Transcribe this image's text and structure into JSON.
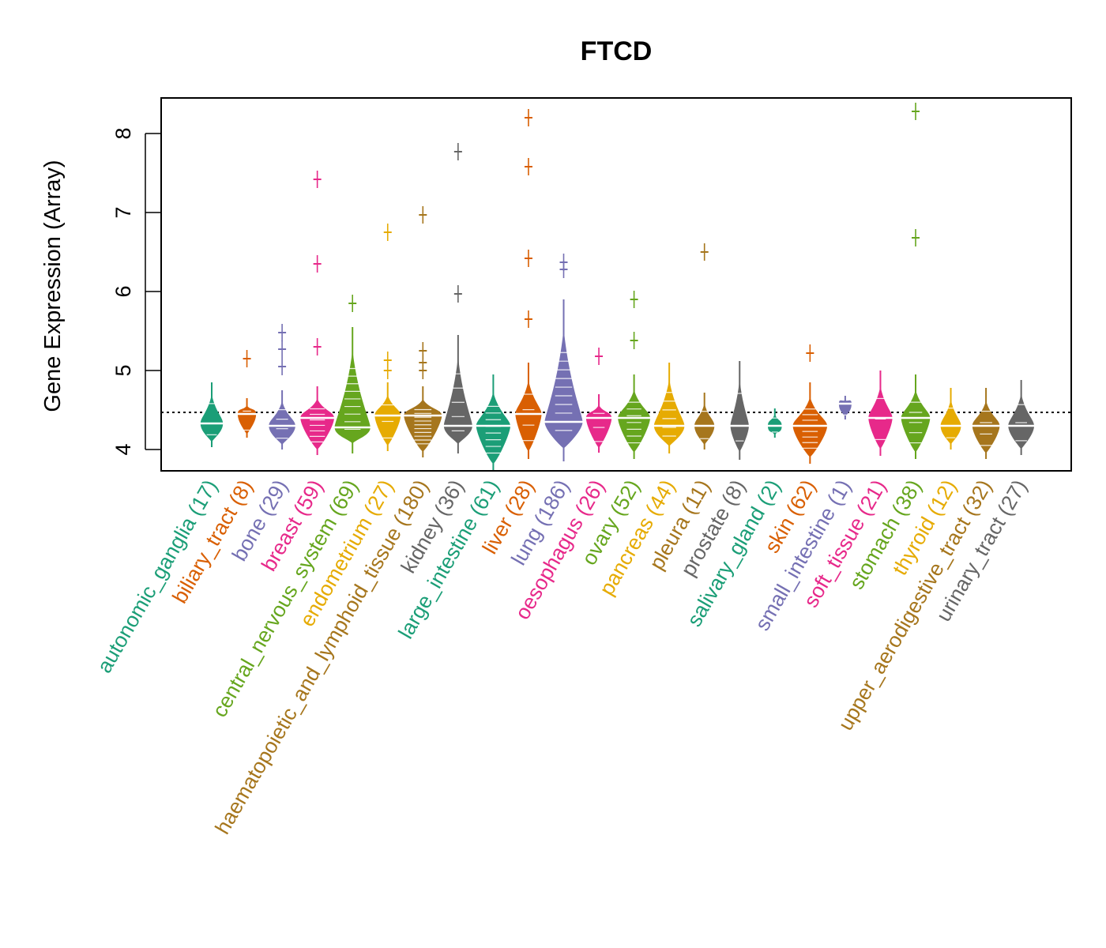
{
  "chart_data": {
    "type": "violin",
    "title": "FTCD",
    "xlabel": "",
    "ylabel": "Gene Expression (Array)",
    "ylim": [
      3.72,
      8.46
    ],
    "yticks": [
      4,
      5,
      6,
      7,
      8
    ],
    "reference_line": 4.47,
    "grid": false,
    "legend": "none",
    "categories": [
      {
        "label": "autonomic_ganglia (17)",
        "name": "autonomic_ganglia",
        "n": 17,
        "color": "#1B9E77",
        "min": 4.03,
        "max": 4.85,
        "median": 4.33,
        "outliers": []
      },
      {
        "label": "biliary_tract (8)",
        "name": "biliary_tract",
        "n": 8,
        "color": "#D95F02",
        "min": 4.15,
        "max": 4.65,
        "median": 4.45,
        "outliers": [
          5.15
        ]
      },
      {
        "label": "bone (29)",
        "name": "bone",
        "n": 29,
        "color": "#7570B3",
        "min": 4.0,
        "max": 4.75,
        "median": 4.3,
        "outliers": [
          5.05,
          5.27,
          5.48
        ]
      },
      {
        "label": "breast (59)",
        "name": "breast",
        "n": 59,
        "color": "#E7298A",
        "min": 3.93,
        "max": 4.8,
        "median": 4.4,
        "outliers": [
          5.3,
          6.35,
          7.42
        ]
      },
      {
        "label": "central_nervous_system (69)",
        "name": "central_nervous_system",
        "n": 69,
        "color": "#66A61E",
        "min": 3.95,
        "max": 5.55,
        "median": 4.28,
        "outliers": [
          5.85
        ]
      },
      {
        "label": "endometrium (27)",
        "name": "endometrium",
        "n": 27,
        "color": "#E6AB02",
        "min": 3.98,
        "max": 4.85,
        "median": 4.43,
        "outliers": [
          5.0,
          5.13,
          6.75
        ]
      },
      {
        "label": "haematopoietic_and_lymphoid_tissue (180)",
        "name": "haematopoietic_and_lymphoid_tissue",
        "n": 180,
        "color": "#A6761D",
        "min": 3.9,
        "max": 4.8,
        "median": 4.43,
        "outliers": [
          5.0,
          5.1,
          5.25,
          6.97
        ]
      },
      {
        "label": "kidney (36)",
        "name": "kidney",
        "n": 36,
        "color": "#666666",
        "min": 3.95,
        "max": 5.45,
        "median": 4.3,
        "outliers": [
          5.97,
          7.77
        ]
      },
      {
        "label": "large_intestine (61)",
        "name": "large_intestine",
        "n": 61,
        "color": "#1B9E77",
        "min": 3.72,
        "max": 4.95,
        "median": 4.3,
        "outliers": []
      },
      {
        "label": "liver (28)",
        "name": "liver",
        "n": 28,
        "color": "#D95F02",
        "min": 3.88,
        "max": 5.1,
        "median": 4.45,
        "outliers": [
          5.65,
          6.42,
          7.58,
          8.2
        ]
      },
      {
        "label": "lung (186)",
        "name": "lung",
        "n": 186,
        "color": "#7570B3",
        "min": 3.85,
        "max": 5.9,
        "median": 4.35,
        "outliers": [
          6.28,
          6.37
        ]
      },
      {
        "label": "oesophagus (26)",
        "name": "oesophagus",
        "n": 26,
        "color": "#E7298A",
        "min": 3.96,
        "max": 4.7,
        "median": 4.4,
        "outliers": [
          5.18
        ]
      },
      {
        "label": "ovary (52)",
        "name": "ovary",
        "n": 52,
        "color": "#66A61E",
        "min": 3.88,
        "max": 4.95,
        "median": 4.4,
        "outliers": [
          5.38,
          5.9
        ]
      },
      {
        "label": "pancreas (44)",
        "name": "pancreas",
        "n": 44,
        "color": "#E6AB02",
        "min": 3.95,
        "max": 5.1,
        "median": 4.3,
        "outliers": []
      },
      {
        "label": "pleura (11)",
        "name": "pleura",
        "n": 11,
        "color": "#A6761D",
        "min": 4.0,
        "max": 4.72,
        "median": 4.3,
        "outliers": [
          6.5
        ]
      },
      {
        "label": "prostate (8)",
        "name": "prostate",
        "n": 8,
        "color": "#666666",
        "min": 3.87,
        "max": 5.12,
        "median": 4.3,
        "outliers": []
      },
      {
        "label": "salivary_gland (2)",
        "name": "salivary_gland",
        "n": 2,
        "color": "#1B9E77",
        "min": 4.15,
        "max": 4.52,
        "median": 4.3,
        "outliers": []
      },
      {
        "label": "skin (62)",
        "name": "skin",
        "n": 62,
        "color": "#D95F02",
        "min": 3.82,
        "max": 4.85,
        "median": 4.3,
        "outliers": [
          5.22
        ]
      },
      {
        "label": "small_intestine (1)",
        "name": "small_intestine",
        "n": 1,
        "color": "#7570B3",
        "min": 4.38,
        "max": 4.68,
        "median": 4.58,
        "outliers": []
      },
      {
        "label": "soft_tissue (21)",
        "name": "soft_tissue",
        "n": 21,
        "color": "#E7298A",
        "min": 3.92,
        "max": 5.0,
        "median": 4.4,
        "outliers": []
      },
      {
        "label": "stomach (38)",
        "name": "stomach",
        "n": 38,
        "color": "#66A61E",
        "min": 3.88,
        "max": 4.95,
        "median": 4.4,
        "outliers": [
          6.68,
          8.28
        ]
      },
      {
        "label": "thyroid (12)",
        "name": "thyroid",
        "n": 12,
        "color": "#E6AB02",
        "min": 4.0,
        "max": 4.78,
        "median": 4.3,
        "outliers": []
      },
      {
        "label": "upper_aerodigestive_tract (32)",
        "name": "upper_aerodigestive_tract",
        "n": 32,
        "color": "#A6761D",
        "min": 3.88,
        "max": 4.78,
        "median": 4.3,
        "outliers": []
      },
      {
        "label": "urinary_tract (27)",
        "name": "urinary_tract",
        "n": 27,
        "color": "#666666",
        "min": 3.93,
        "max": 4.88,
        "median": 4.3,
        "outliers": []
      }
    ]
  }
}
